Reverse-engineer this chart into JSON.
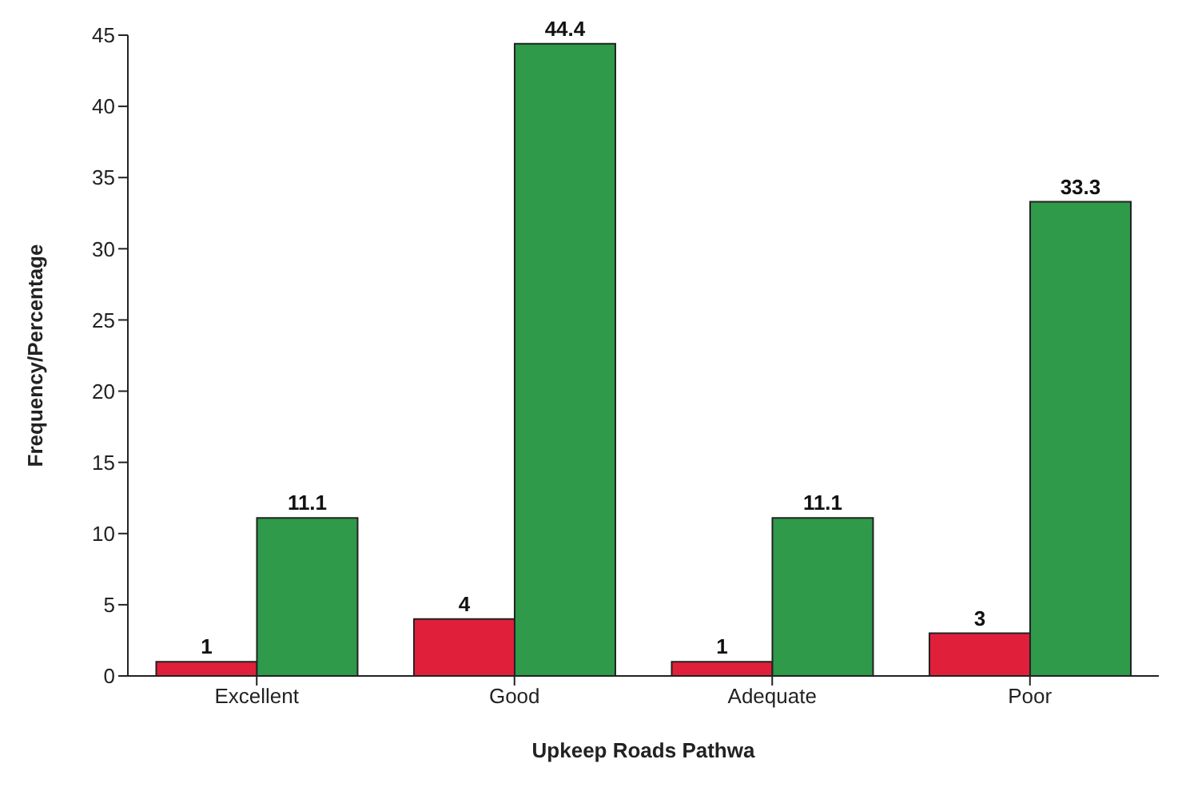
{
  "chart_data": {
    "type": "bar",
    "xlabel": "Upkeep Roads Pathwa",
    "ylabel": "Frequency/Percentage",
    "categories": [
      "Excellent",
      "Good",
      "Adequate",
      "Poor"
    ],
    "series": [
      {
        "color": "#e0203a",
        "values": [
          1,
          4,
          1,
          3
        ]
      },
      {
        "color": "#2e9a4a",
        "values": [
          11.1,
          44.4,
          11.1,
          33.3
        ]
      }
    ],
    "ylim": [
      0,
      45
    ],
    "yticks": [
      0,
      5,
      10,
      15,
      20,
      25,
      30,
      35,
      40,
      45
    ],
    "data_labels": true,
    "grid": false,
    "legend": false
  }
}
